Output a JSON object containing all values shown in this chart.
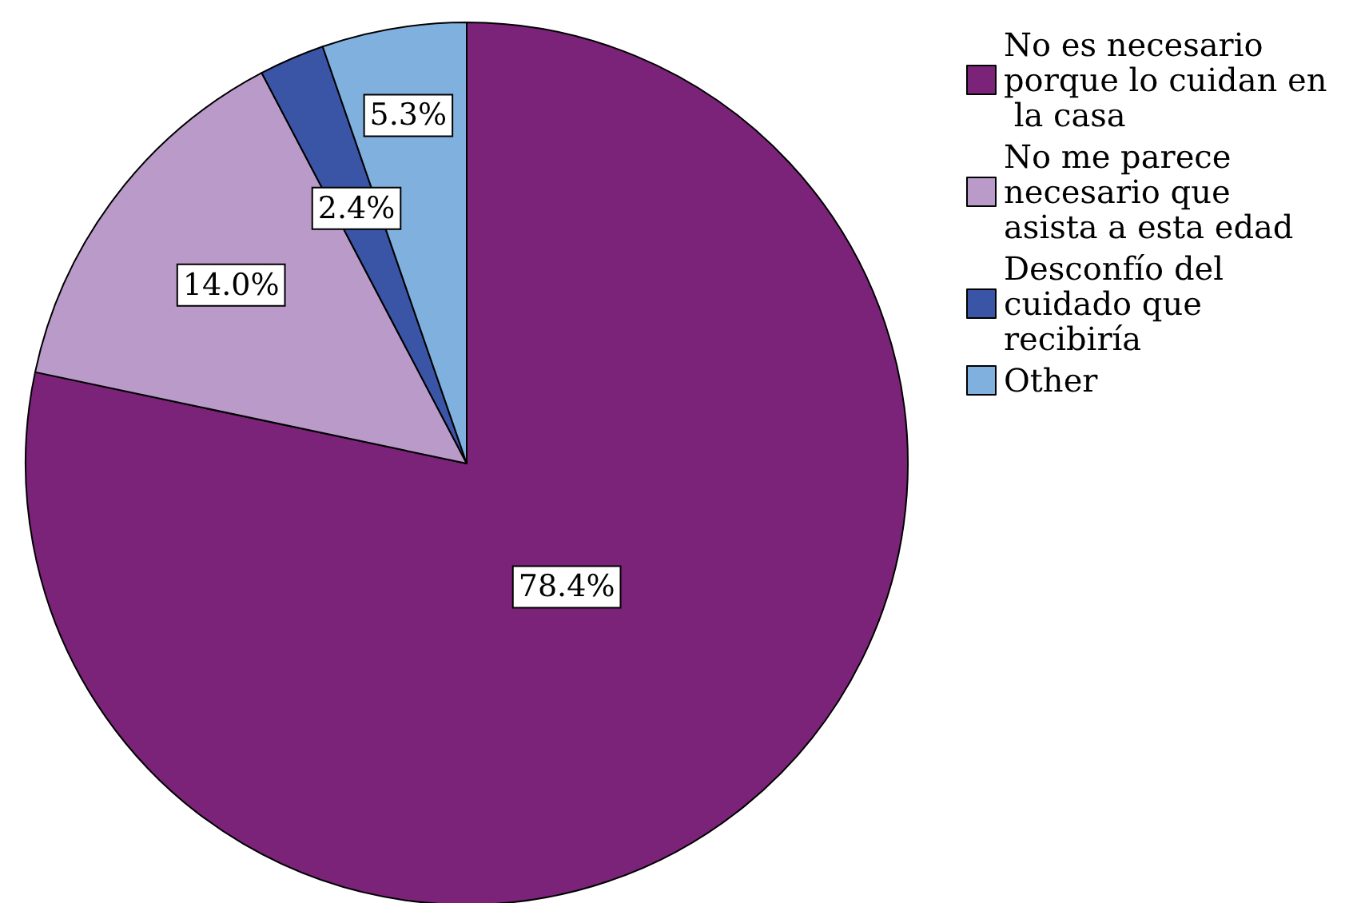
{
  "chart_data": {
    "type": "pie",
    "categories": [
      "No es necesario porque lo cuidan en la casa",
      "No me parece necesario que asista a esta edad",
      "Desconfío del cuidado que recibiría",
      "Other"
    ],
    "values": [
      78.4,
      14.0,
      2.4,
      5.3
    ],
    "colors": [
      "#7b2378",
      "#b99ac9",
      "#3a55a6",
      "#80b1de"
    ],
    "value_labels": [
      "78.4%",
      "14.0%",
      "2.4%",
      "5.3%"
    ],
    "legend": "top right"
  }
}
